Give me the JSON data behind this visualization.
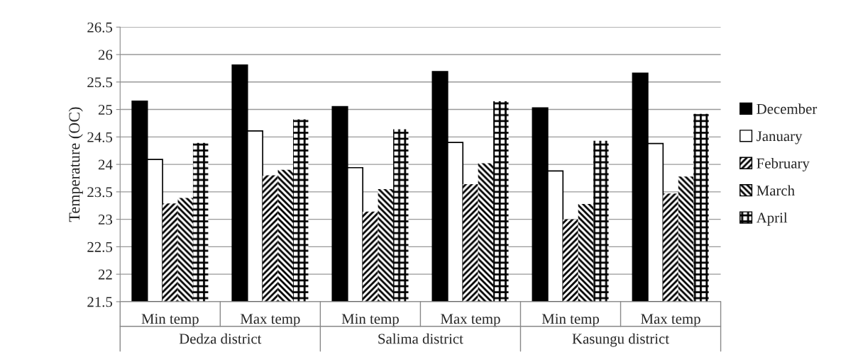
{
  "chart_data": {
    "type": "bar",
    "ylabel": "Temperature (OC)",
    "categories": [
      "Min temp",
      "Max temp",
      "Min temp",
      "Max temp",
      "Min temp",
      "Max temp"
    ],
    "annotations": [
      "Dedza district",
      "Salima district",
      "Kasungu district"
    ],
    "series": [
      {
        "name": "December",
        "color": "#000000",
        "values": [
          25.15,
          25.81,
          25.05,
          25.69,
          25.03,
          25.66
        ]
      },
      {
        "name": "January",
        "color": "#ffffff",
        "values": [
          24.09,
          24.61,
          23.94,
          24.4,
          23.88,
          24.38
        ]
      },
      {
        "name": "February",
        "color": "#000000",
        "values": [
          23.29,
          23.8,
          23.14,
          23.64,
          23.0,
          23.47
        ]
      },
      {
        "name": "March",
        "color": "#000000",
        "values": [
          23.39,
          23.9,
          23.55,
          24.02,
          23.28,
          23.78
        ]
      },
      {
        "name": "April",
        "color": "#000000",
        "values": [
          24.39,
          24.82,
          24.64,
          25.15,
          24.43,
          24.92
        ]
      }
    ],
    "ylim": [
      21.5,
      26.5
    ],
    "yticks": [
      21.5,
      22,
      22.5,
      23,
      23.5,
      24,
      24.5,
      25,
      25.5,
      26,
      26.5
    ],
    "grid": "y",
    "legend": "right"
  }
}
